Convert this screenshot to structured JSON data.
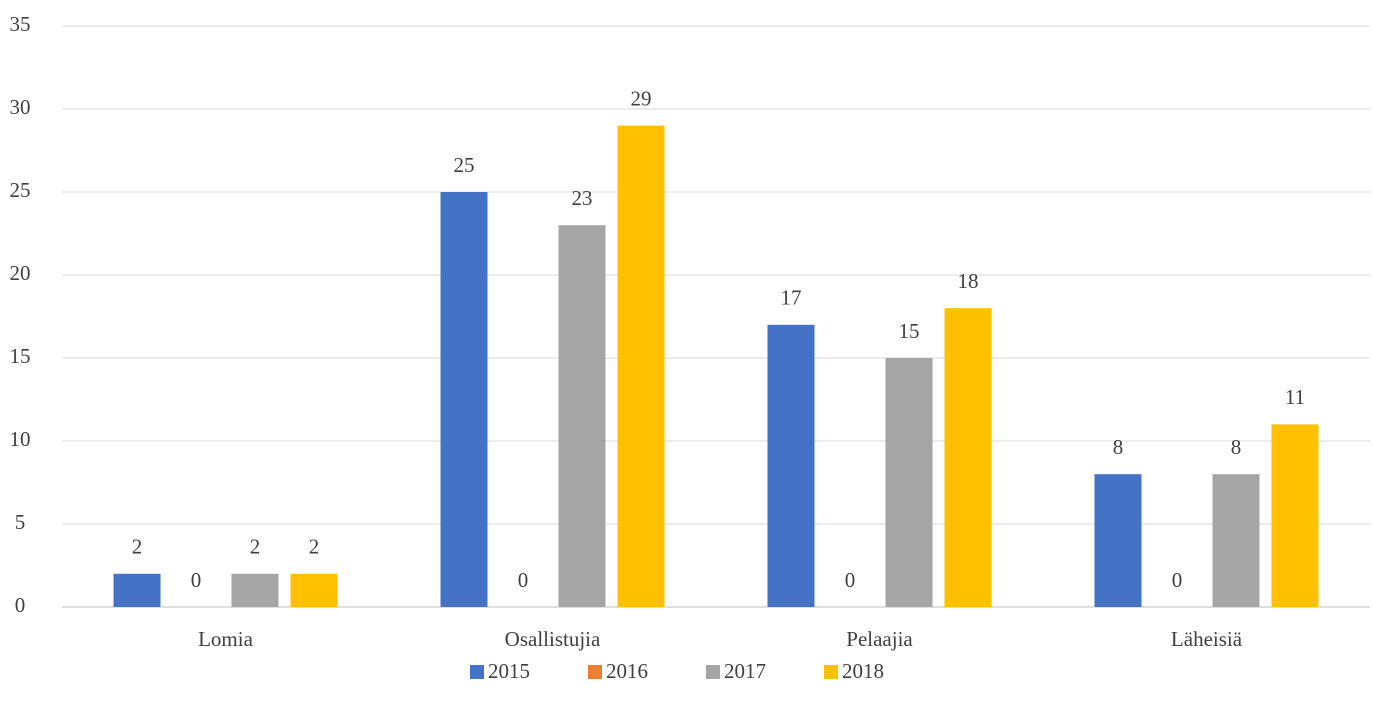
{
  "chart_data": {
    "type": "bar",
    "categories": [
      "Lomia",
      "Osallistujia",
      "Pelaajia",
      "Läheisiä"
    ],
    "series": [
      {
        "name": "2015",
        "color": "#4472c4",
        "values": [
          2,
          25,
          17,
          8
        ]
      },
      {
        "name": "2016",
        "color": "#ed7d31",
        "values": [
          0,
          0,
          0,
          0
        ]
      },
      {
        "name": "2017",
        "color": "#a5a5a5",
        "values": [
          2,
          23,
          15,
          8
        ]
      },
      {
        "name": "2018",
        "color": "#ffc000",
        "values": [
          2,
          29,
          18,
          11
        ]
      }
    ],
    "ylim": [
      0,
      35
    ],
    "yticks": [
      0,
      5,
      10,
      15,
      20,
      25,
      30,
      35
    ],
    "grid": true,
    "legend": "bottom"
  }
}
